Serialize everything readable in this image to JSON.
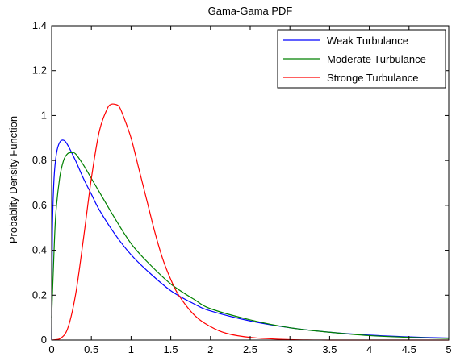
{
  "chart_data": {
    "type": "line",
    "title": "Gama-Gama PDF",
    "xlabel": "",
    "ylabel": "Probablity Density Function",
    "xlim": [
      0,
      5
    ],
    "ylim": [
      0,
      1.4
    ],
    "x_ticks": [
      "0",
      "0.5",
      "1",
      "1.5",
      "2",
      "2.5",
      "3",
      "3.5",
      "4",
      "4.5",
      "5"
    ],
    "y_ticks": [
      "0",
      "0.2",
      "0.4",
      "0.6",
      "0.8",
      "1",
      "1.2",
      "1.4"
    ],
    "grid": false,
    "legend_position": "top-right",
    "series": [
      {
        "name": "Weak Turbulance",
        "color": "#0000ff",
        "x": [
          0.0,
          0.01,
          0.03,
          0.06,
          0.1,
          0.15,
          0.2,
          0.3,
          0.4,
          0.5,
          0.6,
          0.8,
          1.0,
          1.2,
          1.5,
          1.8,
          2.0,
          2.5,
          3.0,
          3.5,
          4.0,
          4.5,
          5.0
        ],
        "y": [
          0.0,
          0.49,
          0.72,
          0.83,
          0.88,
          0.89,
          0.87,
          0.8,
          0.72,
          0.65,
          0.58,
          0.47,
          0.38,
          0.31,
          0.22,
          0.16,
          0.13,
          0.085,
          0.055,
          0.035,
          0.022,
          0.014,
          0.009
        ]
      },
      {
        "name": "Moderate Turbulance",
        "color": "#008000",
        "x": [
          0.0,
          0.02,
          0.05,
          0.1,
          0.15,
          0.2,
          0.25,
          0.3,
          0.4,
          0.5,
          0.6,
          0.8,
          1.0,
          1.2,
          1.5,
          1.8,
          2.0,
          2.5,
          3.0,
          3.5,
          4.0,
          4.5,
          5.0
        ],
        "y": [
          0.1,
          0.3,
          0.55,
          0.72,
          0.8,
          0.83,
          0.835,
          0.83,
          0.78,
          0.72,
          0.66,
          0.54,
          0.43,
          0.35,
          0.25,
          0.18,
          0.14,
          0.09,
          0.055,
          0.035,
          0.02,
          0.012,
          0.007
        ]
      },
      {
        "name": "Stronge Turbulance",
        "color": "#ff0000",
        "x": [
          0.0,
          0.1,
          0.2,
          0.3,
          0.4,
          0.5,
          0.6,
          0.7,
          0.75,
          0.8,
          0.85,
          0.9,
          1.0,
          1.1,
          1.2,
          1.3,
          1.4,
          1.5,
          1.6,
          1.8,
          2.0,
          2.2,
          2.5,
          3.0,
          3.5,
          4.0,
          5.0
        ],
        "y": [
          0.0,
          0.005,
          0.05,
          0.2,
          0.45,
          0.72,
          0.93,
          1.03,
          1.05,
          1.05,
          1.04,
          1.0,
          0.9,
          0.76,
          0.62,
          0.48,
          0.36,
          0.27,
          0.2,
          0.11,
          0.06,
          0.03,
          0.012,
          0.002,
          0.0,
          0.0,
          0.0
        ]
      }
    ]
  }
}
